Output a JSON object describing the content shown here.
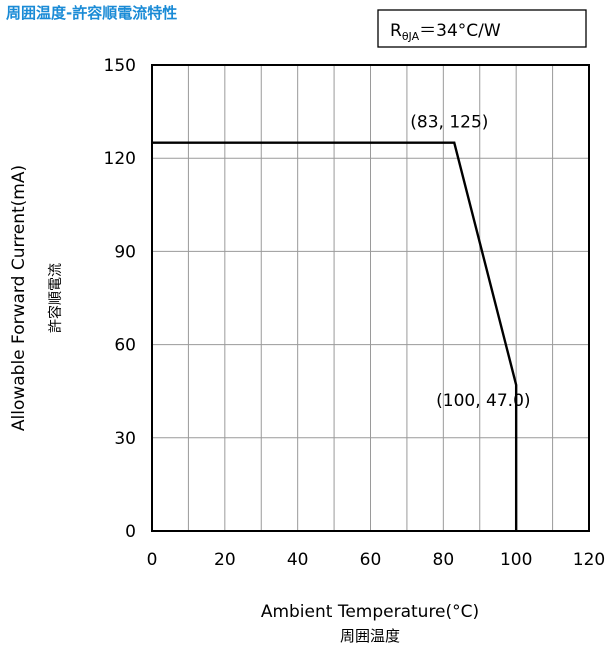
{
  "heading": "周囲温度-許容順電流特性",
  "chart_data": {
    "type": "line",
    "title": "",
    "xlabel": "Ambient Temperature(°C)",
    "xlabel_jp": "周囲温度",
    "ylabel": "Allowable Forward Current(mA)",
    "ylabel_jp": "許容順電流",
    "xlim": [
      0,
      120
    ],
    "ylim": [
      0,
      150
    ],
    "xticks": [
      0,
      20,
      40,
      60,
      80,
      100,
      120
    ],
    "yticks": [
      0,
      30,
      60,
      90,
      120,
      150
    ],
    "grid": true,
    "series": [
      {
        "x": [
          0,
          83,
          100,
          100
        ],
        "y": [
          125,
          125,
          47.0,
          0
        ]
      }
    ],
    "annotations": [
      {
        "text": "(83, 125)",
        "x": 83,
        "y": 125
      },
      {
        "text": "(100, 47.0)",
        "x": 100,
        "y": 47.0
      }
    ],
    "legend": {
      "r_main": "R",
      "r_sub": "θJA",
      "r_value": "＝34°C/W",
      "placement": "top-right"
    },
    "colors": {
      "line": "#000000",
      "grid": "#9a9a9a",
      "heading": "#1a8bd6"
    }
  }
}
